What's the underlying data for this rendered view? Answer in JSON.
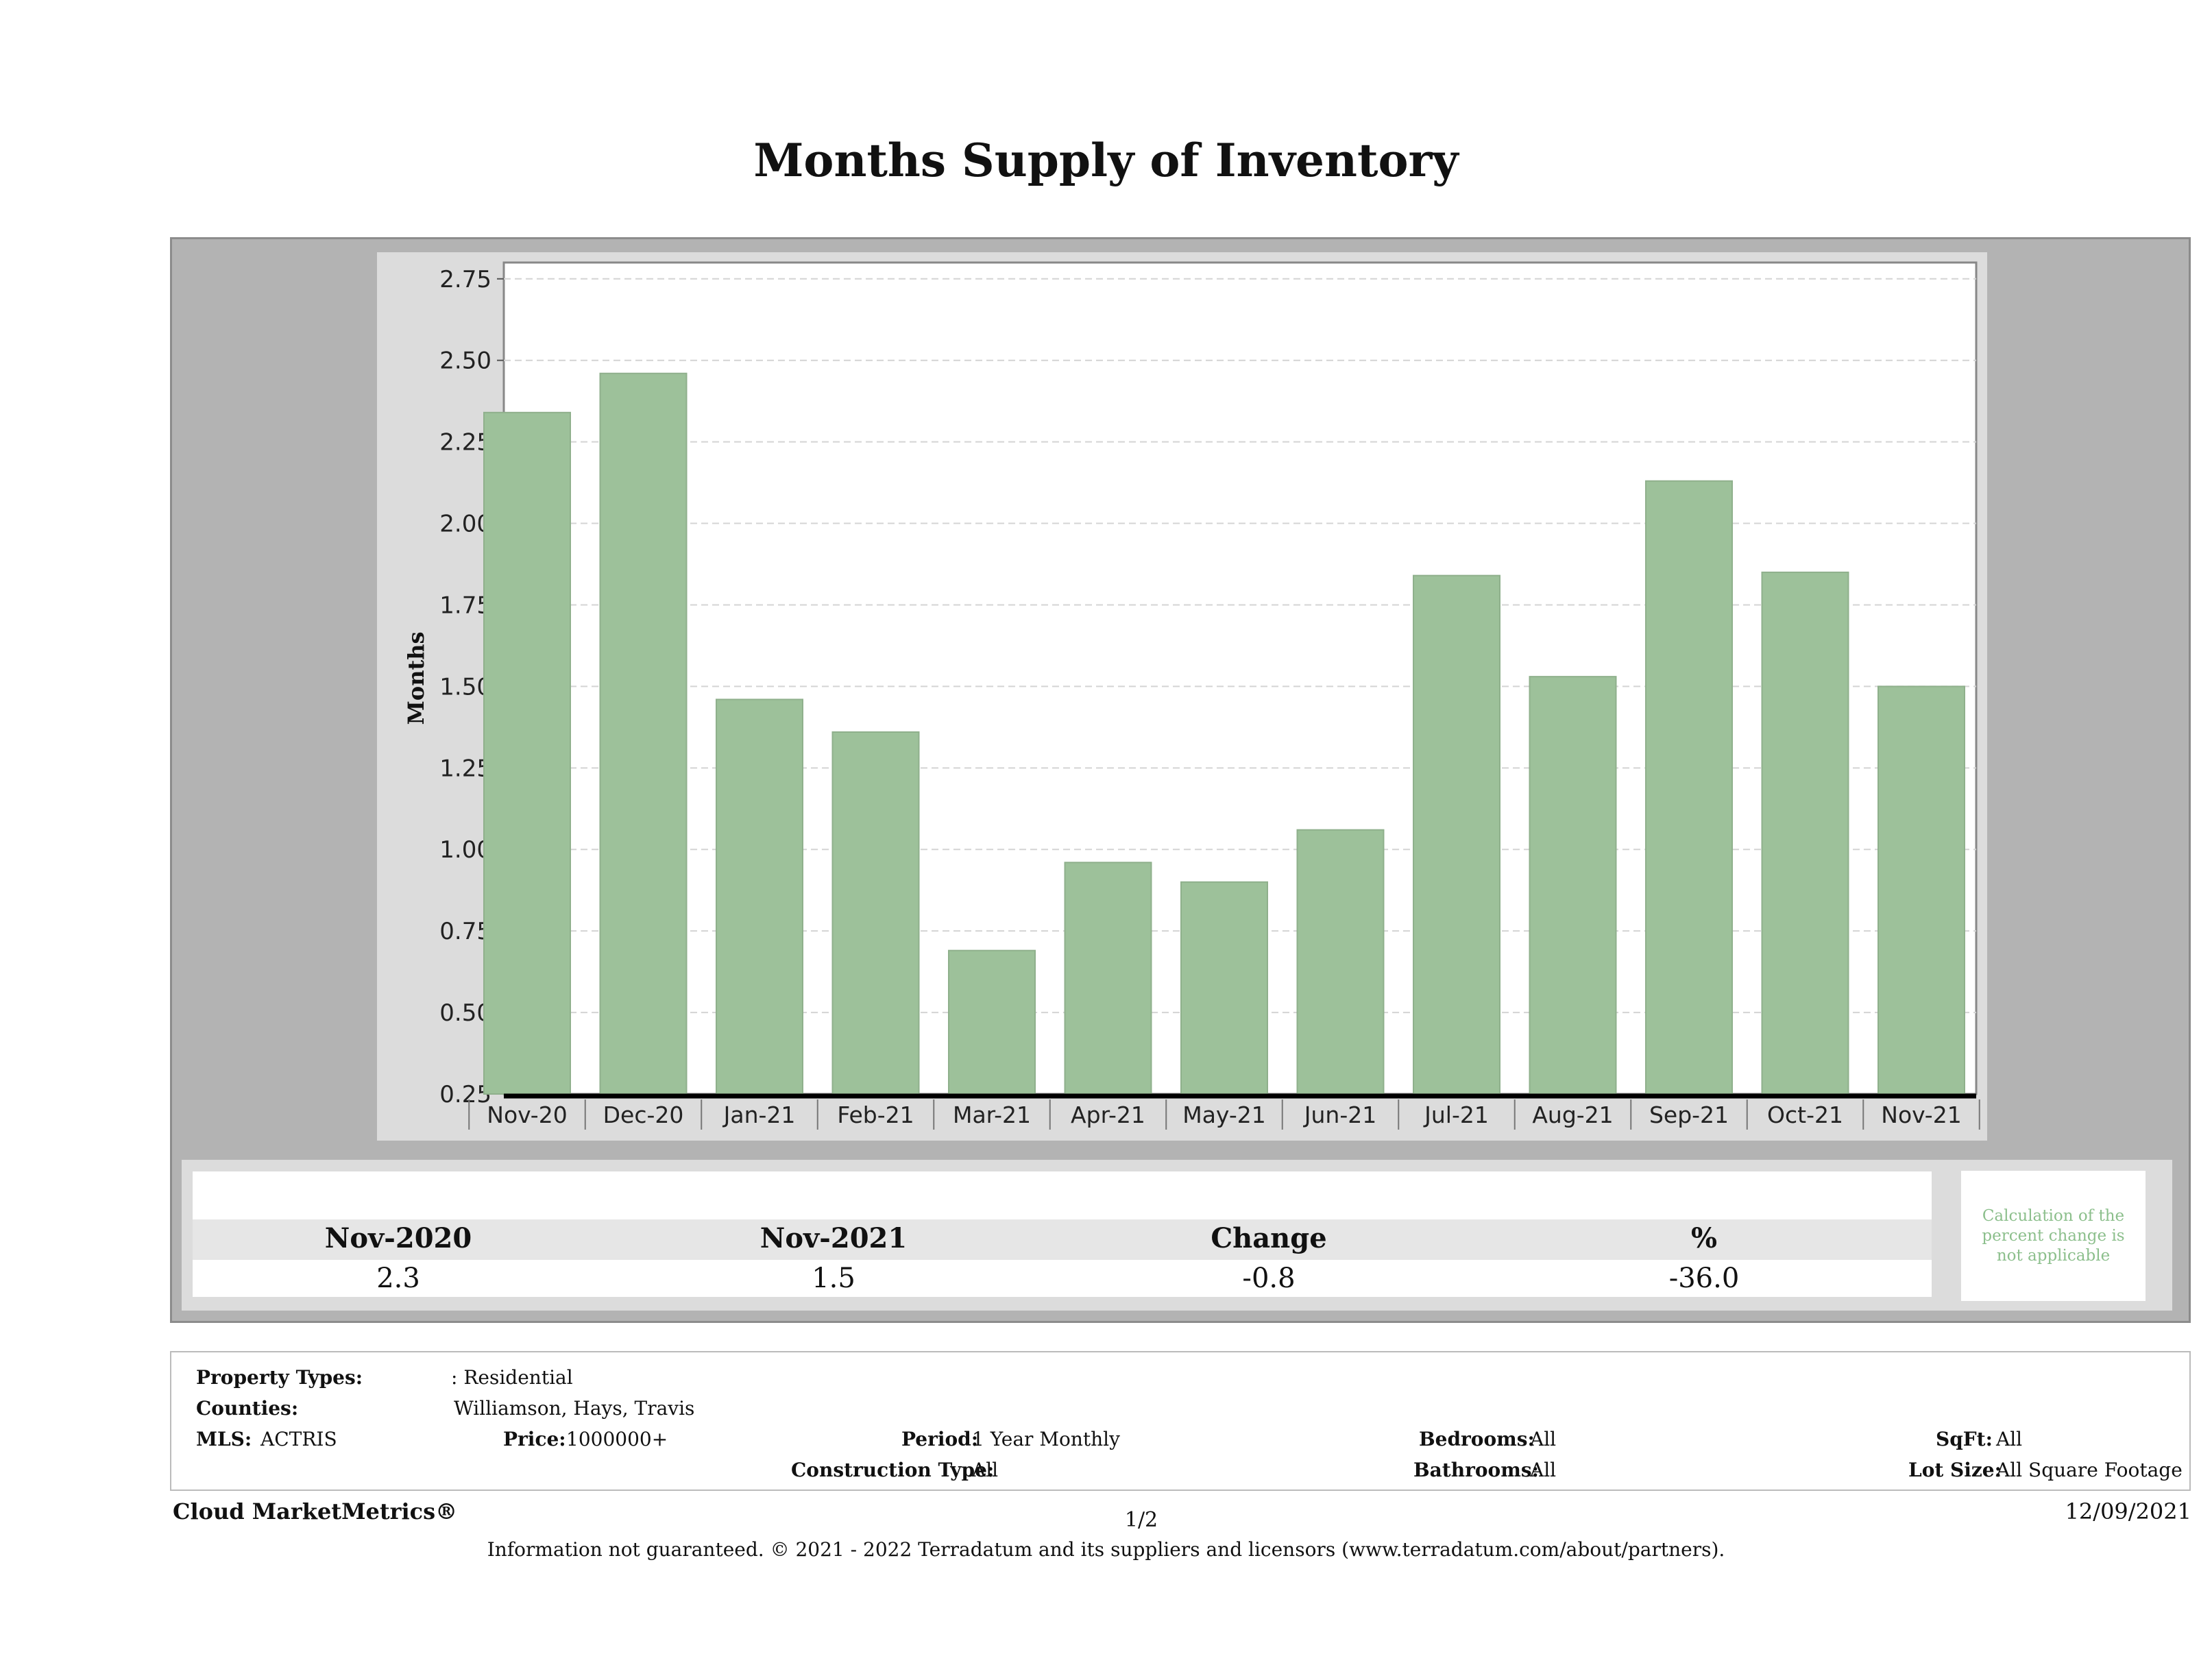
{
  "page": {
    "title": "Months Supply of Inventory",
    "footer_brand": "Cloud MarketMetrics®",
    "page_number": "1/2",
    "date": "12/09/2021",
    "disclaimer": "Information not guaranteed. © 2021 - 2022 Terradatum and its suppliers and licensors (www.terradatum.com/about/partners)."
  },
  "chart_data": {
    "type": "bar",
    "ylabel": "Months",
    "xlabel": "",
    "categories": [
      "Nov-20",
      "Dec-20",
      "Jan-21",
      "Feb-21",
      "Mar-21",
      "Apr-21",
      "May-21",
      "Jun-21",
      "Jul-21",
      "Aug-21",
      "Sep-21",
      "Oct-21",
      "Nov-21"
    ],
    "values": [
      2.34,
      2.46,
      1.46,
      1.36,
      0.69,
      0.96,
      0.9,
      1.06,
      1.84,
      1.53,
      2.13,
      1.85,
      1.5
    ],
    "ylim": [
      0.25,
      2.8
    ],
    "yticks": [
      "0.25",
      "0.50",
      "0.75",
      "1.00",
      "1.25",
      "1.50",
      "1.75",
      "2.00",
      "2.25",
      "2.50",
      "2.75"
    ],
    "grid": true,
    "bar_color": "#9dc19a"
  },
  "summary": {
    "headers": [
      "Nov-2020",
      "Nov-2021",
      "Change",
      "%"
    ],
    "values": [
      "2.3",
      "1.5",
      "-0.8",
      "-36.0"
    ],
    "note": "Calculation of the percent change is not applicable"
  },
  "params": {
    "property_types_label": "Property Types:",
    "property_types": ": Residential",
    "counties_label": "Counties:",
    "counties": "Williamson, Hays, Travis",
    "mls_label": "MLS:",
    "mls": "ACTRIS",
    "price_label": "Price:",
    "price": "1000000+",
    "period_label": "Period:",
    "period": "1 Year Monthly",
    "construction_label": "Construction Type:",
    "construction": "All",
    "bedrooms_label": "Bedrooms:",
    "bedrooms": "All",
    "bathrooms_label": "Bathrooms:",
    "bathrooms": "All",
    "sqft_label": "SqFt:",
    "sqft": "All",
    "lot_label": "Lot Size:",
    "lot": "All Square Footage"
  }
}
